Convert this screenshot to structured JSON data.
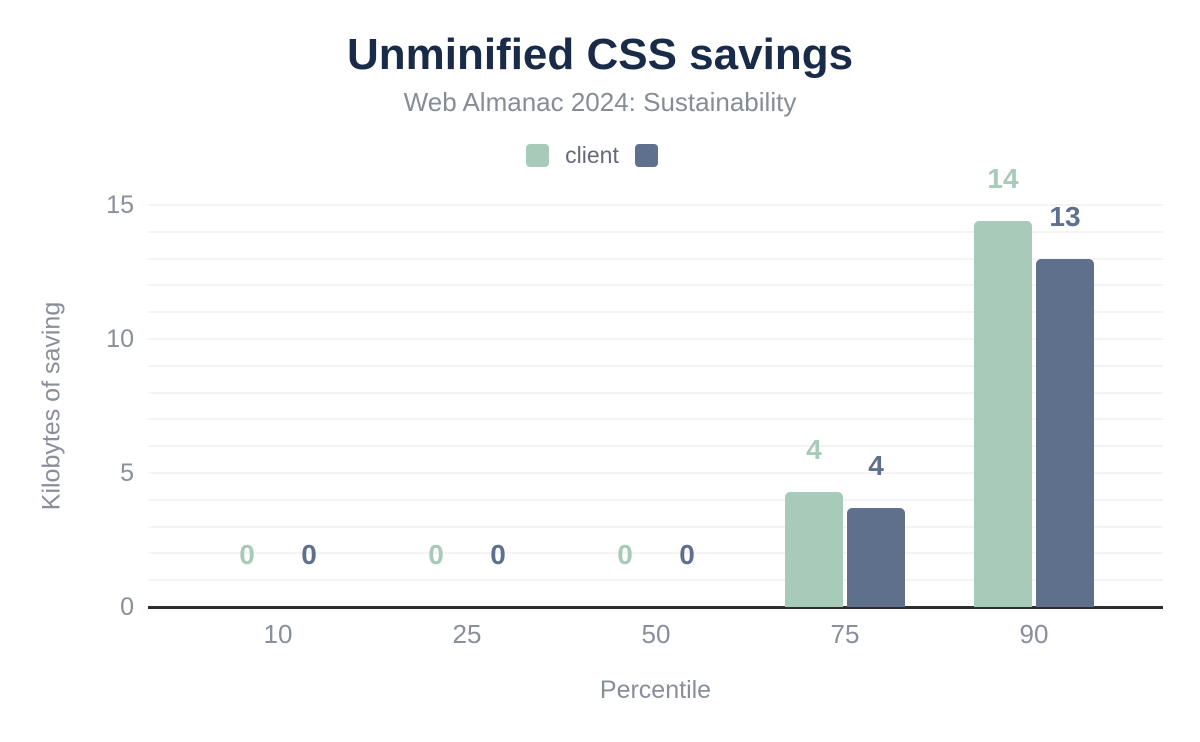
{
  "header": {
    "title": "Unminified CSS savings",
    "subtitle": "Web Almanac 2024: Sustainability"
  },
  "legend": {
    "items": [
      {
        "label": "client",
        "color": "#a8cab9"
      },
      {
        "label": "",
        "color": "#5f708c"
      }
    ]
  },
  "axes": {
    "x_title": "Percentile",
    "y_title": "Kilobytes of saving"
  },
  "colors": {
    "title": "#1a2b49",
    "subtitle": "#868d97",
    "tick_labels": "#898f9a",
    "axis_line": "#2d2e2f",
    "gridline": "#f4f4f5",
    "background": "#ffffff",
    "series_client": "#a8cab9",
    "series_second": "#5f708c"
  },
  "chart_data": {
    "type": "bar",
    "title": "Unminified CSS savings",
    "subtitle": "Web Almanac 2024: Sustainability",
    "xlabel": "Percentile",
    "ylabel": "Kilobytes of saving",
    "categories": [
      "10",
      "25",
      "50",
      "75",
      "90"
    ],
    "series": [
      {
        "name": "client",
        "color": "#a8cab9",
        "values": [
          0,
          0,
          0,
          4.3,
          14.4
        ],
        "data_labels": [
          "0",
          "0",
          "0",
          "4",
          "14"
        ]
      },
      {
        "name": "",
        "color": "#5f708c",
        "values": [
          0,
          0,
          0,
          3.7,
          13.0
        ],
        "data_labels": [
          "0",
          "0",
          "0",
          "4",
          "13"
        ]
      }
    ],
    "ylim": [
      0,
      15
    ],
    "y_major_ticks": [
      0,
      5,
      10,
      15
    ],
    "grid": {
      "horizontal": true,
      "step": 1
    },
    "legend_position": "top-center",
    "data_labels_shown": true
  }
}
